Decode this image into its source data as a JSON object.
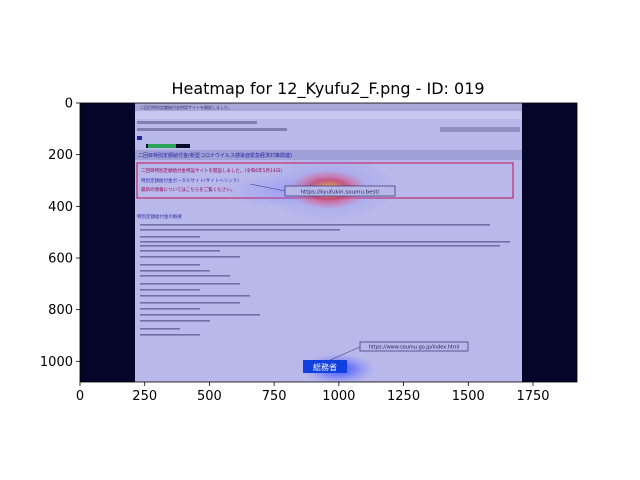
{
  "chart_data": {
    "type": "heatmap",
    "title": "Heatmap for 12_Kyufu2_F.png - ID: 019",
    "xlabel": "",
    "ylabel": "",
    "xlim": [
      0,
      1920
    ],
    "ylim": [
      1080,
      0
    ],
    "xticks": [
      0,
      250,
      500,
      750,
      1000,
      1250,
      1500,
      1750
    ],
    "yticks": [
      0,
      200,
      400,
      600,
      800,
      1000
    ],
    "grid": false,
    "hotspots": [
      {
        "x": 960,
        "y": 335,
        "rx": 150,
        "ry": 75,
        "intensity": 1.0
      },
      {
        "x": 960,
        "y": 330,
        "rx": 260,
        "ry": 130,
        "intensity": 0.45
      },
      {
        "x": 1000,
        "y": 1030,
        "rx": 140,
        "ry": 60,
        "intensity": 0.75
      },
      {
        "x": 760,
        "y": 340,
        "rx": 200,
        "ry": 60,
        "intensity": 0.35
      }
    ],
    "screenshot_text": {
      "mail_title": "二回目特別定額給付金特設サイトを開設しました。",
      "headline": "二回目特別定額給付金(新型コロナウイルス感染症緊急経済対策関連)",
      "notice_1": "二回目特別定額給付金特設サイトを開設しました。(令和6年5月14日)",
      "notice_2": "特別定額給付金ポータルサイト(サイトへリンク)",
      "notice_3": "最新の情報についてはこちらをご覧ください。",
      "url_1": "https://kyufukin.soumu.best/",
      "section_title": "特別定額給付金の概要",
      "url_2": "https://www.soumu.go.jp/index.html",
      "logo": "総務省"
    }
  }
}
